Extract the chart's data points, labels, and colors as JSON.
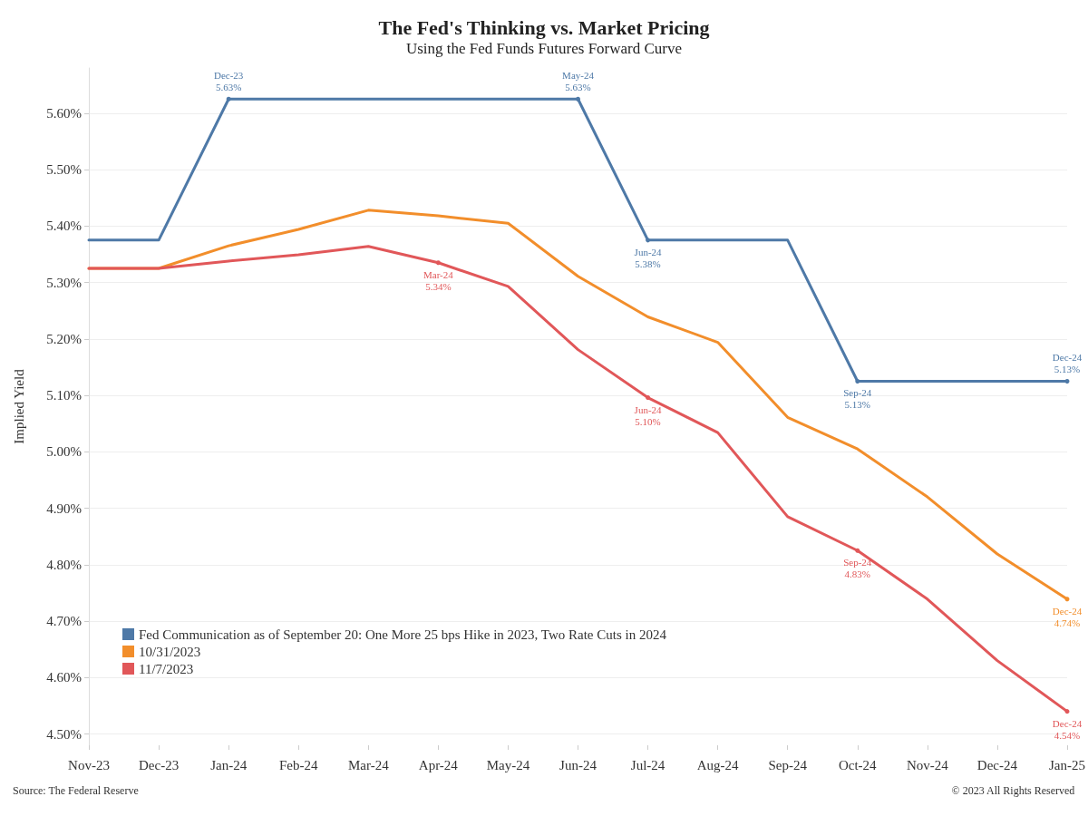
{
  "chart_data": {
    "type": "line",
    "title": "The Fed's Thinking vs. Market Pricing",
    "subtitle": "Using the Fed Funds Futures Forward Curve",
    "ylabel": "Implied Yield",
    "categories": [
      "Nov-23",
      "Dec-23",
      "Jan-24",
      "Feb-24",
      "Mar-24",
      "Apr-24",
      "May-24",
      "Jun-24",
      "Jul-24",
      "Aug-24",
      "Sep-24",
      "Oct-24",
      "Nov-24",
      "Dec-24",
      "Jan-25"
    ],
    "series": [
      {
        "name": "Fed Communication as of September 20: One More 25 bps Hike in 2023, Two Rate Cuts in 2024",
        "color": "#4e79a7",
        "values": [
          5.375,
          5.375,
          5.625,
          5.625,
          5.625,
          5.625,
          5.625,
          5.625,
          5.375,
          5.375,
          5.375,
          5.125,
          5.125,
          5.125,
          5.125
        ]
      },
      {
        "name": "10/31/2023",
        "color": "#f28e2b",
        "values": [
          5.325,
          5.325,
          5.365,
          5.394,
          5.428,
          5.418,
          5.405,
          5.311,
          5.239,
          5.194,
          5.061,
          5.005,
          4.92,
          4.819,
          4.739
        ]
      },
      {
        "name": "11/7/2023",
        "color": "#e15759",
        "values": [
          5.325,
          5.325,
          5.338,
          5.349,
          5.364,
          5.335,
          5.293,
          5.181,
          5.096,
          5.034,
          4.885,
          4.825,
          4.739,
          4.63,
          4.54
        ]
      }
    ],
    "ylim": [
      4.48,
      5.68
    ],
    "yticks": [
      {
        "value": 4.5,
        "label": "4.50%"
      },
      {
        "value": 4.6,
        "label": "4.60%"
      },
      {
        "value": 4.7,
        "label": "4.70%"
      },
      {
        "value": 4.8,
        "label": "4.80%"
      },
      {
        "value": 4.9,
        "label": "4.90%"
      },
      {
        "value": 5.0,
        "label": "5.00%"
      },
      {
        "value": 5.1,
        "label": "5.10%"
      },
      {
        "value": 5.2,
        "label": "5.20%"
      },
      {
        "value": 5.3,
        "label": "5.30%"
      },
      {
        "value": 5.4,
        "label": "5.40%"
      },
      {
        "value": 5.5,
        "label": "5.50%"
      },
      {
        "value": 5.6,
        "label": "5.60%"
      }
    ],
    "grid": "y",
    "legend": "bottom left",
    "marker": "none",
    "line_style": "solid",
    "annotations": [
      {
        "text": "Dec-23\n5.63%",
        "x": "Jan-24",
        "y": 5.625
      },
      {
        "text": "May-24\n5.63%",
        "x": "Jun-24",
        "y": 5.625
      },
      {
        "text": "Jun-24\n5.38%",
        "x": "Jul-24",
        "y": 5.375
      },
      {
        "text": "Sep-24\n5.13%",
        "x": "Oct-24",
        "y": 5.125
      },
      {
        "text": "Dec-24\n5.13%",
        "x": "Jan-25",
        "y": 5.125
      },
      {
        "text": "Dec-24\n4.74%",
        "x": "Jan-25",
        "y": 4.739
      },
      {
        "text": "Mar-24\n5.34%",
        "x": "Apr-24",
        "y": 5.335
      },
      {
        "text": "Jun-24\n5.10%",
        "x": "Jul-24",
        "y": 5.096
      },
      {
        "text": "Sep-24\n4.83%",
        "x": "Oct-24",
        "y": 4.825
      },
      {
        "text": "Dec-24\n4.54%",
        "x": "Jan-25",
        "y": 4.54
      },
      "Source: The Federal Reserve",
      "© 2023 All Rights Reserved"
    ]
  }
}
